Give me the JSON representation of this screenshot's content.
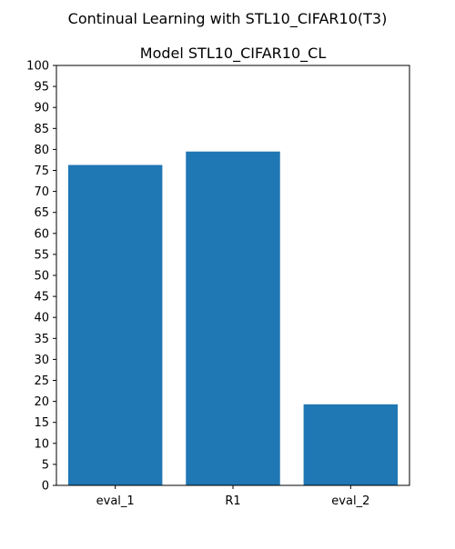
{
  "figure": {
    "suptitle": "Continual Learning with STL10_CIFAR10(T3)"
  },
  "chart_data": {
    "type": "bar",
    "title": "Model STL10_CIFAR10_CL",
    "xlabel": "",
    "ylabel": "",
    "categories": [
      "eval_1",
      "R1",
      "eval_2"
    ],
    "values": [
      76.3,
      79.5,
      19.3
    ],
    "ylim": [
      0,
      100
    ],
    "yticks": [
      0,
      5,
      10,
      15,
      20,
      25,
      30,
      35,
      40,
      45,
      50,
      55,
      60,
      65,
      70,
      75,
      80,
      85,
      90,
      95,
      100
    ],
    "grid": false,
    "legend": "none",
    "bar_color": "#1f77b4"
  }
}
